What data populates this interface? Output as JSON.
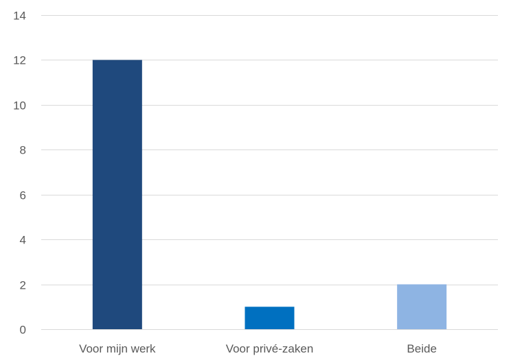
{
  "chart_data": {
    "type": "bar",
    "title": "",
    "xlabel": "",
    "ylabel": "",
    "categories": [
      "Voor mijn werk",
      "Voor privé-zaken",
      "Beide"
    ],
    "values": [
      12,
      1,
      2
    ],
    "colors": [
      "#1f497d",
      "#0070c0",
      "#8eb4e3"
    ],
    "ylim": [
      0,
      14
    ],
    "yticks": [
      0,
      2,
      4,
      6,
      8,
      10,
      12,
      14
    ],
    "grid": true,
    "legend": "none"
  }
}
